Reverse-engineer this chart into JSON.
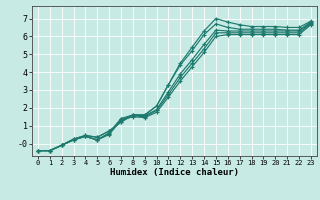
{
  "xlabel": "Humidex (Indice chaleur)",
  "bg_color": "#c8eae5",
  "grid_color": "#ffffff",
  "line_color": "#1e7a6e",
  "xlim": [
    -0.5,
    23.5
  ],
  "ylim": [
    -0.7,
    7.7
  ],
  "lines": [
    {
      "x": [
        0,
        1,
        2,
        3,
        4,
        5,
        6,
        7,
        8,
        9,
        10,
        11,
        12,
        13,
        14,
        15,
        16,
        17,
        18,
        19,
        20,
        21,
        22,
        23
      ],
      "y": [
        -0.4,
        -0.4,
        -0.1,
        0.25,
        0.45,
        0.35,
        0.7,
        1.2,
        1.6,
        1.6,
        2.1,
        3.3,
        4.5,
        5.4,
        6.3,
        7.0,
        6.8,
        6.65,
        6.55,
        6.55,
        6.55,
        6.5,
        6.5,
        6.85
      ]
    },
    {
      "x": [
        0,
        1,
        2,
        3,
        4,
        5,
        6,
        7,
        8,
        9,
        10,
        11,
        12,
        13,
        14,
        15,
        16,
        17,
        18,
        19,
        20,
        21,
        22,
        23
      ],
      "y": [
        -0.4,
        -0.4,
        -0.1,
        0.25,
        0.45,
        0.35,
        0.7,
        1.2,
        1.6,
        1.6,
        2.1,
        3.3,
        4.4,
        5.2,
        6.1,
        6.7,
        6.5,
        6.4,
        6.4,
        6.4,
        6.4,
        6.35,
        6.35,
        6.8
      ]
    },
    {
      "x": [
        0,
        1,
        2,
        3,
        4,
        5,
        6,
        7,
        8,
        9,
        10,
        11,
        12,
        13,
        14,
        15,
        16,
        17,
        18,
        19,
        20,
        21,
        22,
        23
      ],
      "y": [
        -0.4,
        -0.4,
        -0.1,
        0.2,
        0.4,
        0.2,
        0.6,
        1.4,
        1.6,
        1.55,
        1.9,
        2.9,
        3.9,
        4.7,
        5.55,
        6.35,
        6.3,
        6.3,
        6.3,
        6.3,
        6.3,
        6.3,
        6.3,
        6.75
      ]
    },
    {
      "x": [
        0,
        1,
        2,
        3,
        4,
        5,
        6,
        7,
        8,
        9,
        10,
        11,
        12,
        13,
        14,
        15,
        16,
        17,
        18,
        19,
        20,
        21,
        22,
        23
      ],
      "y": [
        -0.4,
        -0.4,
        -0.1,
        0.2,
        0.4,
        0.2,
        0.55,
        1.35,
        1.55,
        1.5,
        1.85,
        2.75,
        3.7,
        4.5,
        5.3,
        6.2,
        6.2,
        6.2,
        6.2,
        6.2,
        6.2,
        6.2,
        6.2,
        6.7
      ]
    },
    {
      "x": [
        0,
        1,
        2,
        3,
        4,
        5,
        6,
        7,
        8,
        9,
        10,
        11,
        12,
        13,
        14,
        15,
        16,
        17,
        18,
        19,
        20,
        21,
        22,
        23
      ],
      "y": [
        -0.4,
        -0.4,
        -0.1,
        0.2,
        0.4,
        0.2,
        0.5,
        1.3,
        1.5,
        1.45,
        1.75,
        2.6,
        3.5,
        4.3,
        5.1,
        6.0,
        6.1,
        6.1,
        6.1,
        6.1,
        6.1,
        6.1,
        6.1,
        6.65
      ]
    }
  ],
  "xticks": [
    0,
    1,
    2,
    3,
    4,
    5,
    6,
    7,
    8,
    9,
    10,
    11,
    12,
    13,
    14,
    15,
    16,
    17,
    18,
    19,
    20,
    21,
    22,
    23
  ],
  "yticks": [
    0,
    1,
    2,
    3,
    4,
    5,
    6,
    7
  ],
  "ytick_labels": [
    "-0",
    "1",
    "2",
    "3",
    "4",
    "5",
    "6",
    "7"
  ]
}
